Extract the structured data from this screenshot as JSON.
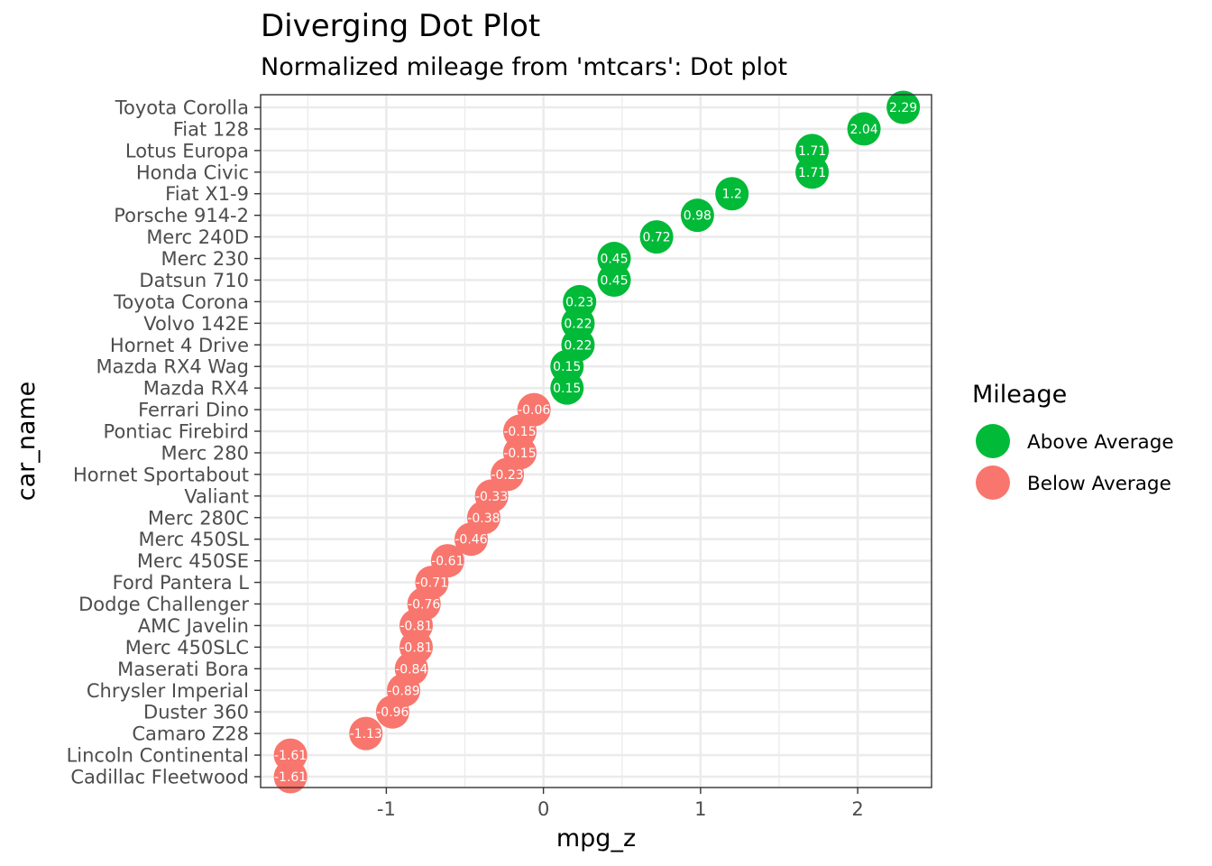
{
  "chart_data": {
    "type": "scatter",
    "title": "Diverging Dot Plot",
    "subtitle": "Normalized mileage from 'mtcars': Dot plot",
    "xlabel": "mpg_z",
    "ylabel": "car_name",
    "xlim": [
      -1.8,
      2.47
    ],
    "x_ticks": [
      -1,
      0,
      1,
      2
    ],
    "x_tick_labels": [
      "-1",
      "0",
      "1",
      "2"
    ],
    "grid": true,
    "legend": {
      "title": "Mileage",
      "placement": "right",
      "entries": [
        {
          "label": "Above Average",
          "color": "#00BA38"
        },
        {
          "label": "Below Average",
          "color": "#F8766D"
        }
      ]
    },
    "colors": {
      "above": "#00BA38",
      "below": "#F8766D"
    },
    "points": [
      {
        "car": "Toyota Corolla",
        "value": 2.29,
        "label": "2.29",
        "group": "above"
      },
      {
        "car": "Fiat 128",
        "value": 2.04,
        "label": "2.04",
        "group": "above"
      },
      {
        "car": "Lotus Europa",
        "value": 1.71,
        "label": "1.71",
        "group": "above"
      },
      {
        "car": "Honda Civic",
        "value": 1.71,
        "label": "1.71",
        "group": "above"
      },
      {
        "car": "Fiat X1-9",
        "value": 1.2,
        "label": "1.2",
        "group": "above"
      },
      {
        "car": "Porsche 914-2",
        "value": 0.98,
        "label": "0.98",
        "group": "above"
      },
      {
        "car": "Merc 240D",
        "value": 0.72,
        "label": "0.72",
        "group": "above"
      },
      {
        "car": "Merc 230",
        "value": 0.45,
        "label": "0.45",
        "group": "above"
      },
      {
        "car": "Datsun 710",
        "value": 0.45,
        "label": "0.45",
        "group": "above"
      },
      {
        "car": "Toyota Corona",
        "value": 0.23,
        "label": "0.23",
        "group": "above"
      },
      {
        "car": "Volvo 142E",
        "value": 0.22,
        "label": "0.22",
        "group": "above"
      },
      {
        "car": "Hornet 4 Drive",
        "value": 0.22,
        "label": "0.22",
        "group": "above"
      },
      {
        "car": "Mazda RX4 Wag",
        "value": 0.15,
        "label": "0.15",
        "group": "above"
      },
      {
        "car": "Mazda RX4",
        "value": 0.15,
        "label": "0.15",
        "group": "above"
      },
      {
        "car": "Ferrari Dino",
        "value": -0.06,
        "label": "-0.06",
        "group": "below"
      },
      {
        "car": "Pontiac Firebird",
        "value": -0.15,
        "label": "-0.15",
        "group": "below"
      },
      {
        "car": "Merc 280",
        "value": -0.15,
        "label": "-0.15",
        "group": "below"
      },
      {
        "car": "Hornet Sportabout",
        "value": -0.23,
        "label": "-0.23",
        "group": "below"
      },
      {
        "car": "Valiant",
        "value": -0.33,
        "label": "-0.33",
        "group": "below"
      },
      {
        "car": "Merc 280C",
        "value": -0.38,
        "label": "-0.38",
        "group": "below"
      },
      {
        "car": "Merc 450SL",
        "value": -0.46,
        "label": "-0.46",
        "group": "below"
      },
      {
        "car": "Merc 450SE",
        "value": -0.61,
        "label": "-0.61",
        "group": "below"
      },
      {
        "car": "Ford Pantera L",
        "value": -0.71,
        "label": "-0.71",
        "group": "below"
      },
      {
        "car": "Dodge Challenger",
        "value": -0.76,
        "label": "-0.76",
        "group": "below"
      },
      {
        "car": "AMC Javelin",
        "value": -0.81,
        "label": "-0.81",
        "group": "below"
      },
      {
        "car": "Merc 450SLC",
        "value": -0.81,
        "label": "-0.81",
        "group": "below"
      },
      {
        "car": "Maserati Bora",
        "value": -0.84,
        "label": "-0.84",
        "group": "below"
      },
      {
        "car": "Chrysler Imperial",
        "value": -0.89,
        "label": "-0.89",
        "group": "below"
      },
      {
        "car": "Duster 360",
        "value": -0.96,
        "label": "-0.96",
        "group": "below"
      },
      {
        "car": "Camaro Z28",
        "value": -1.13,
        "label": "-1.13",
        "group": "below"
      },
      {
        "car": "Lincoln Continental",
        "value": -1.61,
        "label": "-1.61",
        "group": "below"
      },
      {
        "car": "Cadillac Fleetwood",
        "value": -1.61,
        "label": "-1.61",
        "group": "below"
      }
    ]
  }
}
